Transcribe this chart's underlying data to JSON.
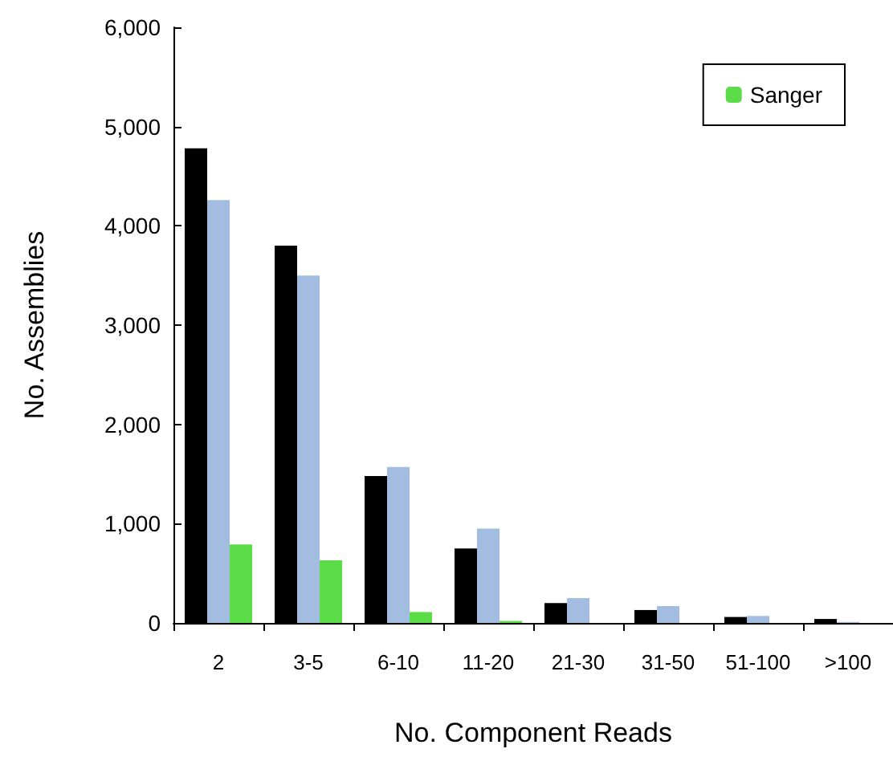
{
  "chart_data": {
    "type": "bar",
    "xlabel": "No. Component Reads",
    "ylabel": "No. Assemblies",
    "categories": [
      "2",
      "3-5",
      "6-10",
      "11-20",
      "21-30",
      "31-50",
      "51-100",
      ">100"
    ],
    "series": [
      {
        "color": "#000000",
        "values": [
          4780,
          3800,
          1480,
          750,
          200,
          130,
          60,
          40
        ]
      },
      {
        "color": "#a3bde0",
        "values": [
          4260,
          3500,
          1570,
          950,
          250,
          170,
          70,
          10
        ]
      },
      {
        "name": "Sanger",
        "color": "#5ddc4a",
        "values": [
          790,
          630,
          110,
          20,
          0,
          0,
          0,
          0
        ]
      }
    ],
    "ylim": [
      0,
      6000
    ],
    "yticks": [
      0,
      {
        "value": 1000,
        "label": "1,000"
      },
      {
        "value": 2000,
        "label": "2,000"
      },
      {
        "value": 3000,
        "label": "3,000"
      },
      {
        "value": 4000,
        "label": "4,000"
      },
      {
        "value": 5000,
        "label": "5,000"
      },
      {
        "value": 6000,
        "label": "6,000"
      }
    ],
    "grid": false,
    "legend": "top right"
  }
}
